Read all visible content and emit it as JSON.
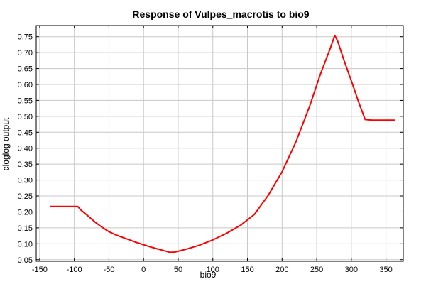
{
  "chart_data": {
    "type": "line",
    "title": "Response of Vulpes_macrotis to bio9",
    "xlabel": "bio9",
    "ylabel": "cloglog output",
    "xlim": [
      -155,
      375
    ],
    "ylim": [
      0.045,
      0.785
    ],
    "x_ticks": [
      -150,
      -100,
      -50,
      0,
      50,
      100,
      150,
      200,
      250,
      300,
      350
    ],
    "x_tick_labels": [
      "-150",
      "-100",
      "-50",
      "0",
      "50",
      "100",
      "150",
      "200",
      "250",
      "300",
      "350"
    ],
    "y_ticks": [
      0.05,
      0.1,
      0.15,
      0.2,
      0.25,
      0.3,
      0.35,
      0.4,
      0.45,
      0.5,
      0.55,
      0.6,
      0.65,
      0.7,
      0.75
    ],
    "y_tick_labels": [
      "0.05",
      "0.10",
      "0.15",
      "0.20",
      "0.25",
      "0.30",
      "0.35",
      "0.40",
      "0.45",
      "0.50",
      "0.55",
      "0.60",
      "0.65",
      "0.70",
      "0.75"
    ],
    "grid": true,
    "series": [
      {
        "color": "#ff0000",
        "x": [
          -135,
          -95,
          -90,
          -80,
          -70,
          -60,
          -50,
          -40,
          -30,
          -20,
          -10,
          0,
          10,
          20,
          30,
          38,
          45,
          60,
          80,
          100,
          120,
          140,
          160,
          180,
          200,
          220,
          240,
          255,
          270,
          276,
          280,
          290,
          300,
          310,
          320,
          330,
          345,
          363
        ],
        "y": [
          0.217,
          0.217,
          0.205,
          0.187,
          0.168,
          0.152,
          0.138,
          0.128,
          0.12,
          0.112,
          0.104,
          0.097,
          0.09,
          0.084,
          0.078,
          0.073,
          0.074,
          0.082,
          0.095,
          0.112,
          0.133,
          0.158,
          0.192,
          0.252,
          0.326,
          0.42,
          0.533,
          0.63,
          0.716,
          0.754,
          0.738,
          0.672,
          0.612,
          0.548,
          0.49,
          0.488,
          0.488,
          0.488
        ]
      }
    ]
  }
}
